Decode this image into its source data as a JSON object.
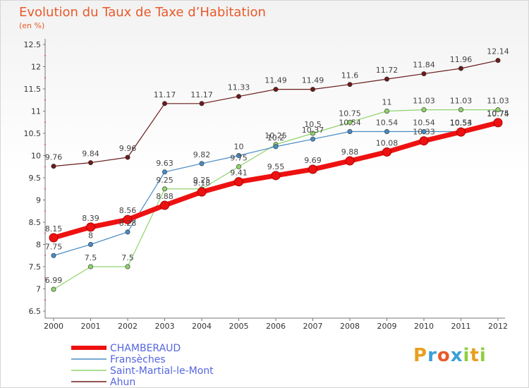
{
  "chart_data": {
    "type": "line",
    "title": "Evolution du Taux de Taxe d’Habitation",
    "subtitle": "(en %)",
    "x": [
      2000,
      2001,
      2002,
      2003,
      2004,
      2005,
      2006,
      2007,
      2008,
      2009,
      2010,
      2011,
      2012
    ],
    "yticks": [
      6.5,
      7,
      7.5,
      8,
      8.5,
      9,
      9.5,
      10,
      10.5,
      11,
      11.5,
      12,
      12.5
    ],
    "ylim": [
      6.5,
      12.5
    ],
    "grid": false,
    "legend_position": "bottom-left",
    "series": [
      {
        "name": "Ahun",
        "color": "#6b1a1a",
        "values": [
          9.76,
          9.84,
          9.96,
          11.17,
          11.17,
          11.33,
          11.49,
          11.49,
          11.6,
          11.72,
          11.84,
          11.96,
          12.14
        ]
      },
      {
        "name": "Saint-Martial-le-Mont",
        "color": "#8fd46a",
        "values": [
          6.99,
          7.5,
          7.5,
          9.25,
          9.25,
          9.75,
          10.25,
          10.5,
          10.75,
          11,
          11.03,
          11.03,
          11.03
        ]
      },
      {
        "name": "Fransèches",
        "color": "#4a8bc4",
        "values": [
          7.75,
          8,
          8.28,
          9.63,
          9.82,
          10,
          10.2,
          10.37,
          10.54,
          10.54,
          10.54,
          10.54,
          10.75
        ]
      },
      {
        "name": "CHAMBERAUD",
        "color": "#ee1111",
        "values": [
          8.15,
          8.39,
          8.56,
          8.88,
          9.18,
          9.41,
          9.55,
          9.69,
          9.88,
          10.08,
          10.33,
          10.53,
          10.74
        ]
      }
    ],
    "labels": [
      {
        "series": 0,
        "texts": [
          "9.76",
          "9.84",
          "9.96",
          "11.17",
          "11.17",
          "11.33",
          "11.49",
          "11.49",
          "11.6",
          "11.72",
          "11.84",
          "11.96",
          "12.14"
        ]
      },
      {
        "series": 1,
        "texts": [
          "6.99",
          "7.5",
          "7.5",
          "9.25",
          "9.25",
          "9.75",
          "10.25",
          "10.5",
          "10.75",
          "11",
          "11.03",
          "11.03",
          "11.03"
        ]
      },
      {
        "series": 2,
        "texts": [
          "7.75",
          "8",
          "8.28",
          "9.63",
          "9.82",
          "10",
          "10.2",
          "10.37",
          "10.54",
          "10.54",
          "10.54",
          "10.54",
          "10.75"
        ]
      },
      {
        "series": 3,
        "texts": [
          "8.15",
          "8.39",
          "8.56",
          "8.88",
          "9.18",
          "9.41",
          "9.55",
          "9.69",
          "9.88",
          "10.08",
          "10.33",
          "10.53",
          "10.74"
        ]
      }
    ],
    "legend": [
      "CHAMBERAUD",
      "Fransèches",
      "Saint-Martial-le-Mont",
      "Ahun"
    ]
  },
  "logo": {
    "letters": [
      "P",
      "r",
      "o",
      "x",
      "i",
      "t",
      "i"
    ],
    "colors": [
      "#e8a020",
      "#3aa0d8",
      "#e85a2a",
      "#3aa0d8",
      "#8fcf3c",
      "#e8a020",
      "#8fcf3c"
    ]
  }
}
